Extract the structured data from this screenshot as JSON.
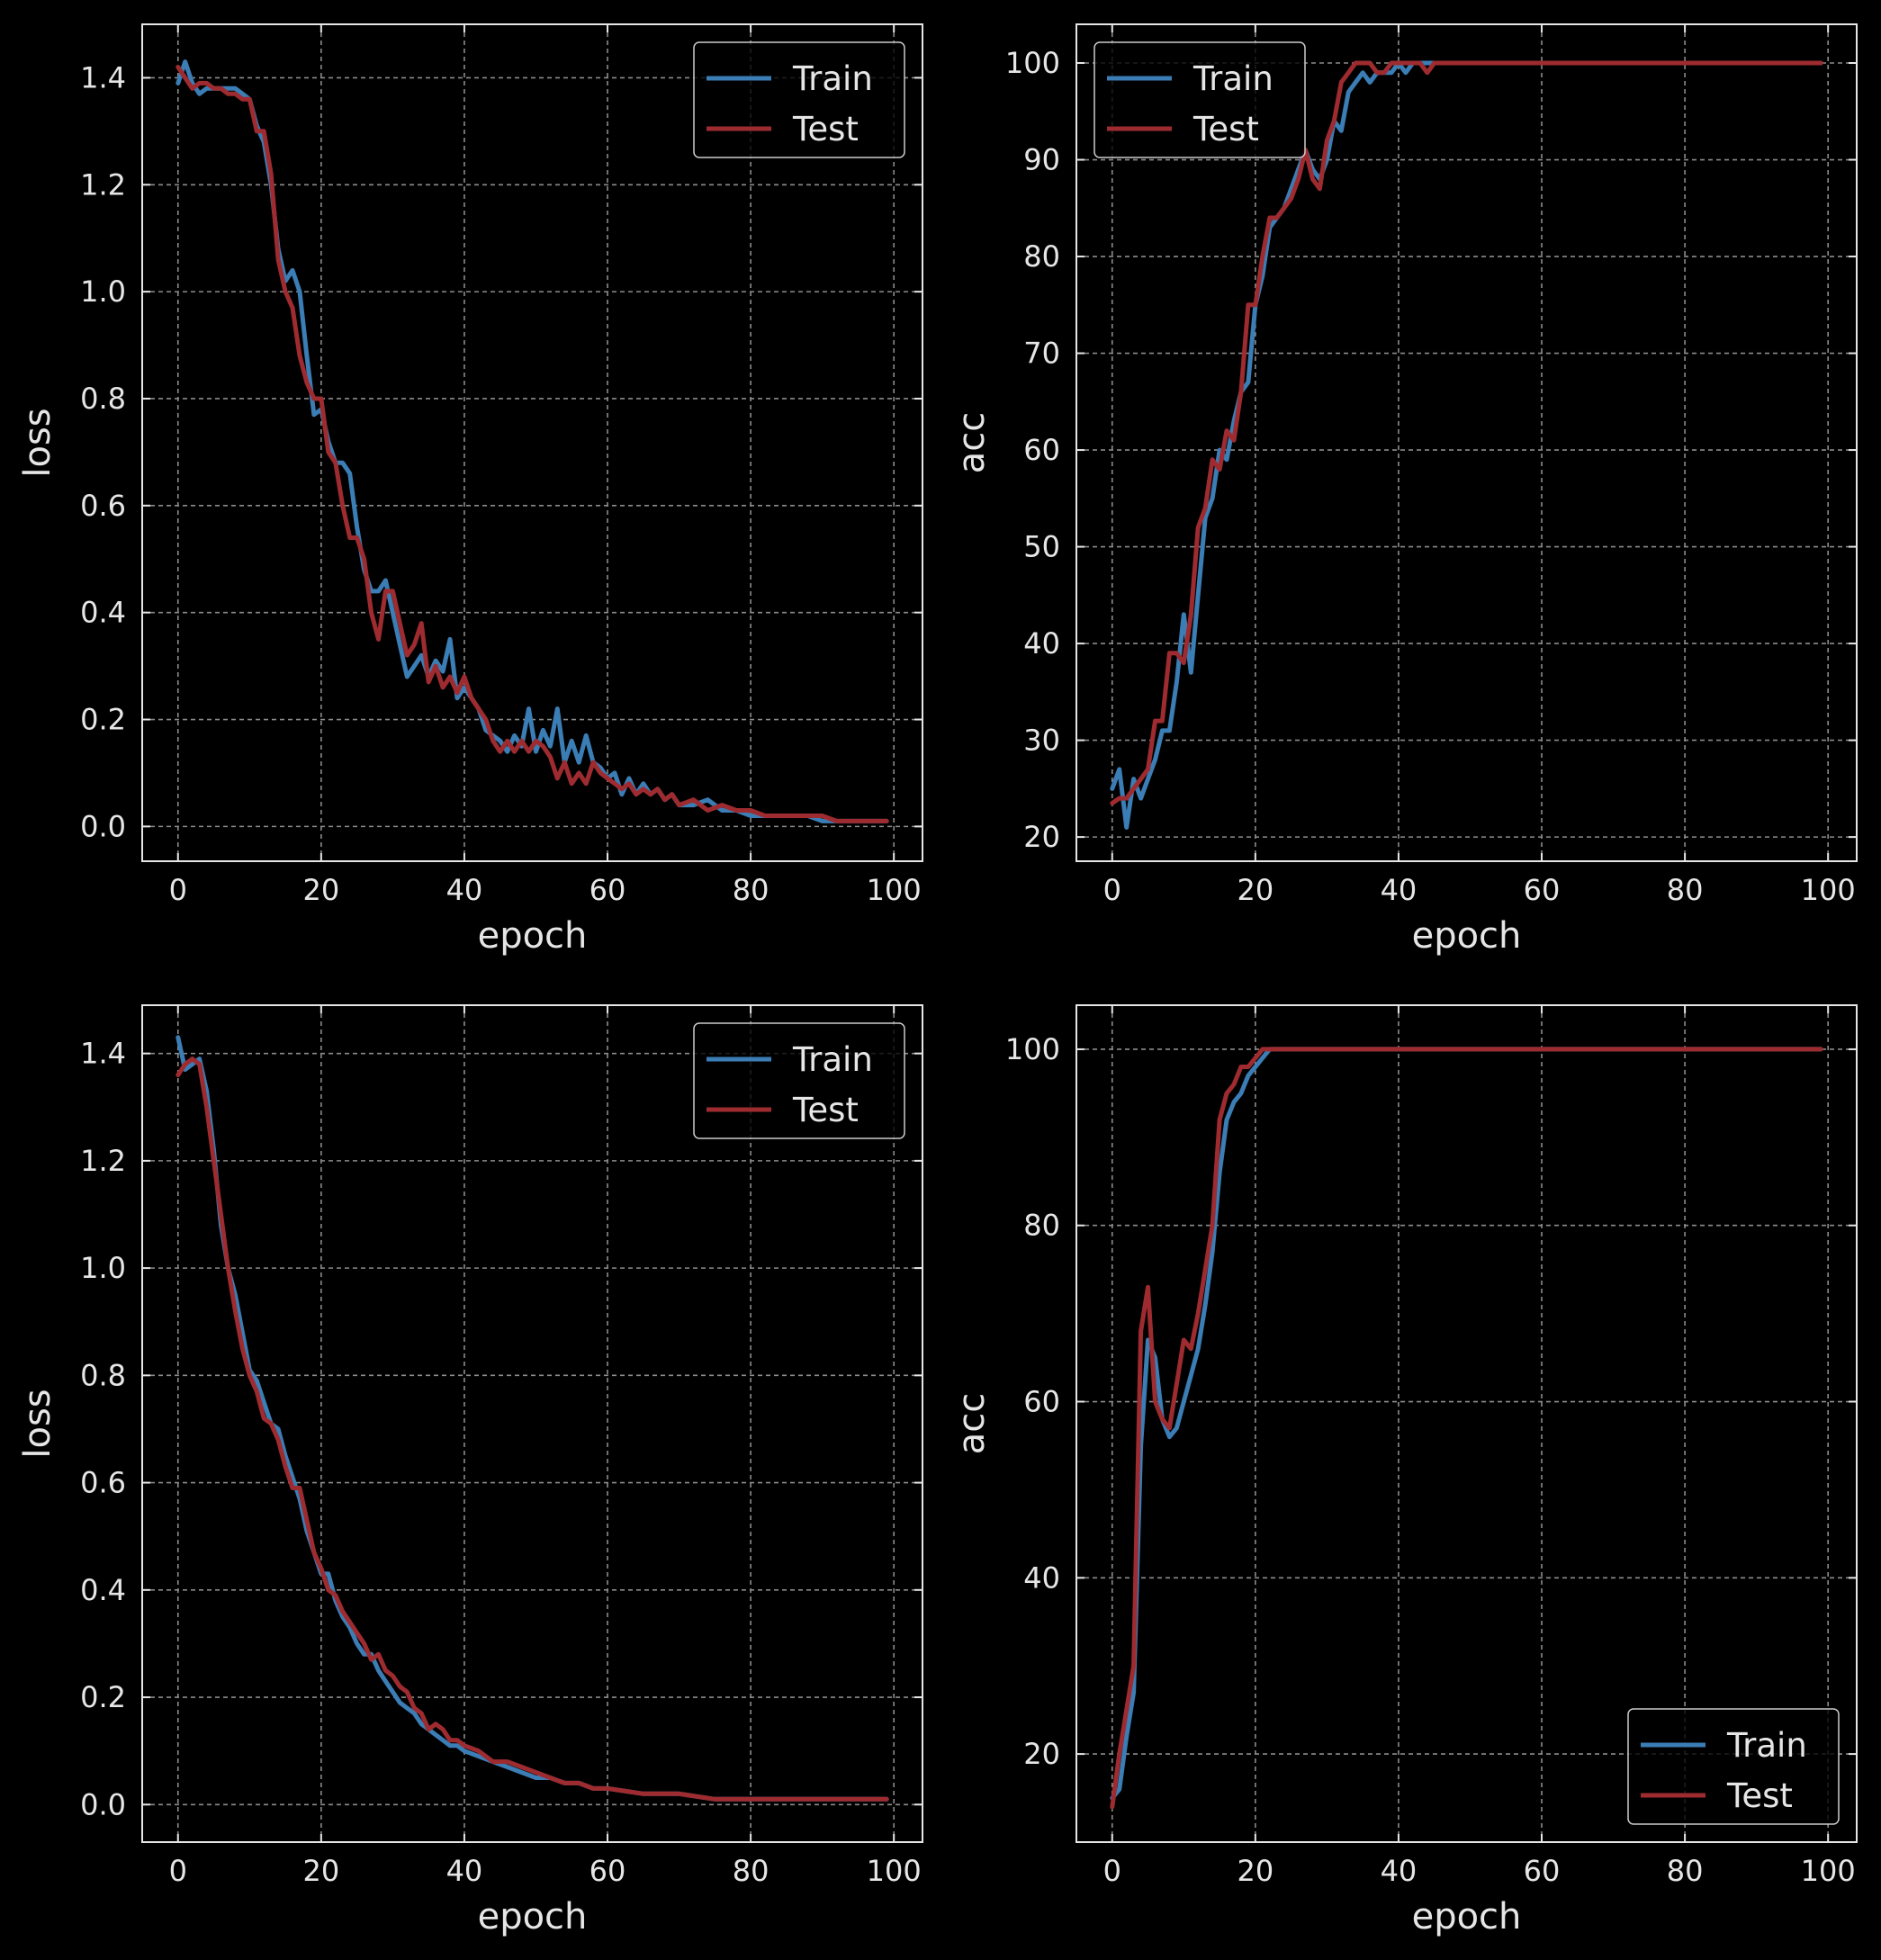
{
  "theme": {
    "background": "#000000",
    "axes_color": "#e6e6e6",
    "grid_color": "#8c8c8c",
    "train_color": "#3b7db5",
    "test_color": "#9e2b2f"
  },
  "chart_data": [
    {
      "type": "line",
      "panel": "top-left",
      "xlabel": "epoch",
      "ylabel": "loss",
      "xlim": [
        -5,
        104
      ],
      "ylim": [
        -0.065,
        1.5
      ],
      "xticks": [
        0,
        20,
        40,
        60,
        80,
        100
      ],
      "xtick_labels": [
        "0",
        "20",
        "40",
        "60",
        "80",
        "100"
      ],
      "yticks": [
        0.0,
        0.2,
        0.4,
        0.6,
        0.8,
        1.0,
        1.2,
        1.4
      ],
      "ytick_labels": [
        "0.0",
        "0.2",
        "0.4",
        "0.6",
        "0.8",
        "1.0",
        "1.2",
        "1.4"
      ],
      "grid": true,
      "legend_position": "top-right",
      "series": [
        {
          "name": "Train",
          "x": [
            0,
            1,
            2,
            3,
            4,
            5,
            6,
            7,
            8,
            9,
            10,
            11,
            12,
            13,
            14,
            15,
            16,
            17,
            18,
            19,
            20,
            21,
            22,
            23,
            24,
            25,
            26,
            27,
            28,
            29,
            30,
            31,
            32,
            33,
            34,
            35,
            36,
            37,
            38,
            39,
            40,
            41,
            42,
            43,
            44,
            45,
            46,
            47,
            48,
            49,
            50,
            51,
            52,
            53,
            54,
            55,
            56,
            57,
            58,
            59,
            60,
            61,
            62,
            63,
            64,
            65,
            66,
            67,
            68,
            69,
            70,
            72,
            74,
            76,
            78,
            80,
            82,
            84,
            86,
            88,
            90,
            92,
            94,
            96,
            98,
            99
          ],
          "y": [
            1.39,
            1.43,
            1.39,
            1.37,
            1.38,
            1.38,
            1.38,
            1.38,
            1.38,
            1.37,
            1.36,
            1.31,
            1.28,
            1.2,
            1.08,
            1.02,
            1.04,
            1.0,
            0.88,
            0.77,
            0.78,
            0.72,
            0.68,
            0.68,
            0.66,
            0.56,
            0.48,
            0.44,
            0.44,
            0.46,
            0.4,
            0.34,
            0.28,
            0.3,
            0.32,
            0.28,
            0.31,
            0.29,
            0.35,
            0.24,
            0.26,
            0.24,
            0.22,
            0.18,
            0.17,
            0.16,
            0.14,
            0.17,
            0.15,
            0.22,
            0.14,
            0.18,
            0.15,
            0.22,
            0.12,
            0.16,
            0.12,
            0.17,
            0.12,
            0.11,
            0.09,
            0.1,
            0.06,
            0.09,
            0.06,
            0.08,
            0.06,
            0.07,
            0.05,
            0.06,
            0.04,
            0.04,
            0.05,
            0.03,
            0.03,
            0.02,
            0.02,
            0.02,
            0.02,
            0.02,
            0.01,
            0.01,
            0.01,
            0.01,
            0.01,
            0.01
          ]
        },
        {
          "name": "Test",
          "x": [
            0,
            1,
            2,
            3,
            4,
            5,
            6,
            7,
            8,
            9,
            10,
            11,
            12,
            13,
            14,
            15,
            16,
            17,
            18,
            19,
            20,
            21,
            22,
            23,
            24,
            25,
            26,
            27,
            28,
            29,
            30,
            31,
            32,
            33,
            34,
            35,
            36,
            37,
            38,
            39,
            40,
            41,
            42,
            43,
            44,
            45,
            46,
            47,
            48,
            49,
            50,
            51,
            52,
            53,
            54,
            55,
            56,
            57,
            58,
            59,
            60,
            61,
            62,
            63,
            64,
            65,
            66,
            67,
            68,
            69,
            70,
            72,
            74,
            76,
            78,
            80,
            82,
            84,
            86,
            88,
            90,
            92,
            94,
            96,
            98,
            99
          ],
          "y": [
            1.42,
            1.4,
            1.38,
            1.39,
            1.39,
            1.38,
            1.38,
            1.37,
            1.37,
            1.36,
            1.36,
            1.3,
            1.3,
            1.22,
            1.06,
            1.0,
            0.97,
            0.88,
            0.83,
            0.8,
            0.8,
            0.7,
            0.68,
            0.6,
            0.54,
            0.54,
            0.5,
            0.4,
            0.35,
            0.44,
            0.44,
            0.38,
            0.32,
            0.34,
            0.38,
            0.27,
            0.3,
            0.26,
            0.28,
            0.25,
            0.28,
            0.24,
            0.22,
            0.2,
            0.16,
            0.14,
            0.16,
            0.14,
            0.16,
            0.14,
            0.16,
            0.15,
            0.13,
            0.09,
            0.12,
            0.08,
            0.1,
            0.08,
            0.12,
            0.1,
            0.09,
            0.08,
            0.07,
            0.08,
            0.06,
            0.07,
            0.06,
            0.07,
            0.05,
            0.06,
            0.04,
            0.05,
            0.03,
            0.04,
            0.03,
            0.03,
            0.02,
            0.02,
            0.02,
            0.02,
            0.02,
            0.01,
            0.01,
            0.01,
            0.01,
            0.01
          ]
        }
      ]
    },
    {
      "type": "line",
      "panel": "top-right",
      "xlabel": "epoch",
      "ylabel": "acc",
      "xlim": [
        -5,
        104
      ],
      "ylim": [
        17.5,
        104
      ],
      "xticks": [
        0,
        20,
        40,
        60,
        80,
        100
      ],
      "xtick_labels": [
        "0",
        "20",
        "40",
        "60",
        "80",
        "100"
      ],
      "yticks": [
        20,
        30,
        40,
        50,
        60,
        70,
        80,
        90,
        100
      ],
      "ytick_labels": [
        "20",
        "30",
        "40",
        "50",
        "60",
        "70",
        "80",
        "90",
        "100"
      ],
      "grid": true,
      "legend_position": "top-left",
      "series": [
        {
          "name": "Train",
          "x": [
            0,
            1,
            2,
            3,
            4,
            5,
            6,
            7,
            8,
            9,
            10,
            11,
            12,
            13,
            14,
            15,
            16,
            17,
            18,
            19,
            20,
            21,
            22,
            23,
            24,
            25,
            26,
            27,
            28,
            29,
            30,
            31,
            32,
            33,
            34,
            35,
            36,
            37,
            38,
            39,
            40,
            41,
            42,
            43,
            44,
            45,
            50,
            60,
            70,
            80,
            90,
            99
          ],
          "y": [
            25,
            27,
            21,
            26,
            24,
            26,
            28,
            31,
            31,
            36,
            43,
            37,
            45,
            53,
            55,
            60,
            59,
            63,
            66,
            67,
            75,
            78,
            83,
            84,
            85,
            87,
            89,
            91,
            89,
            88,
            90,
            94,
            93,
            97,
            98,
            99,
            98,
            99,
            99,
            99,
            100,
            99,
            100,
            100,
            100,
            100,
            100,
            100,
            100,
            100,
            100,
            100
          ]
        },
        {
          "name": "Test",
          "x": [
            0,
            1,
            2,
            3,
            4,
            5,
            6,
            7,
            8,
            9,
            10,
            11,
            12,
            13,
            14,
            15,
            16,
            17,
            18,
            19,
            20,
            21,
            22,
            23,
            24,
            25,
            26,
            27,
            28,
            29,
            30,
            31,
            32,
            33,
            34,
            35,
            36,
            37,
            38,
            39,
            40,
            41,
            42,
            43,
            44,
            45,
            50,
            60,
            70,
            80,
            90,
            99
          ],
          "y": [
            23.5,
            24,
            24,
            25,
            26,
            27,
            32,
            32,
            39,
            39,
            38,
            43,
            52,
            54,
            59,
            58,
            62,
            61,
            66,
            75,
            75,
            80,
            84,
            84,
            85,
            86,
            88,
            91,
            88,
            87,
            92,
            94,
            98,
            99,
            100,
            100,
            100,
            99,
            99,
            100,
            100,
            100,
            100,
            100,
            99,
            100,
            100,
            100,
            100,
            100,
            100,
            100
          ]
        }
      ]
    },
    {
      "type": "line",
      "panel": "bottom-left",
      "xlabel": "epoch",
      "ylabel": "loss",
      "xlim": [
        -5,
        104
      ],
      "ylim": [
        -0.07,
        1.49
      ],
      "xticks": [
        0,
        20,
        40,
        60,
        80,
        100
      ],
      "xtick_labels": [
        "0",
        "20",
        "40",
        "60",
        "80",
        "100"
      ],
      "yticks": [
        0.0,
        0.2,
        0.4,
        0.6,
        0.8,
        1.0,
        1.2,
        1.4
      ],
      "ytick_labels": [
        "0.0",
        "0.2",
        "0.4",
        "0.6",
        "0.8",
        "1.0",
        "1.2",
        "1.4"
      ],
      "grid": true,
      "legend_position": "top-right",
      "series": [
        {
          "name": "Train",
          "x": [
            0,
            1,
            2,
            3,
            4,
            5,
            6,
            7,
            8,
            9,
            10,
            11,
            12,
            13,
            14,
            15,
            16,
            17,
            18,
            19,
            20,
            21,
            22,
            23,
            24,
            25,
            26,
            27,
            28,
            29,
            30,
            31,
            32,
            33,
            34,
            35,
            36,
            37,
            38,
            39,
            40,
            42,
            44,
            46,
            48,
            50,
            52,
            54,
            56,
            58,
            60,
            65,
            70,
            75,
            80,
            85,
            90,
            95,
            99
          ],
          "y": [
            1.43,
            1.37,
            1.38,
            1.39,
            1.33,
            1.22,
            1.08,
            1.0,
            0.95,
            0.88,
            0.81,
            0.79,
            0.75,
            0.71,
            0.7,
            0.65,
            0.61,
            0.57,
            0.51,
            0.47,
            0.43,
            0.43,
            0.38,
            0.35,
            0.33,
            0.3,
            0.28,
            0.28,
            0.25,
            0.23,
            0.21,
            0.19,
            0.18,
            0.17,
            0.15,
            0.14,
            0.13,
            0.12,
            0.11,
            0.11,
            0.1,
            0.09,
            0.08,
            0.07,
            0.06,
            0.05,
            0.05,
            0.04,
            0.04,
            0.03,
            0.03,
            0.02,
            0.02,
            0.01,
            0.01,
            0.01,
            0.01,
            0.01,
            0.01
          ]
        },
        {
          "name": "Test",
          "x": [
            0,
            1,
            2,
            3,
            4,
            5,
            6,
            7,
            8,
            9,
            10,
            11,
            12,
            13,
            14,
            15,
            16,
            17,
            18,
            19,
            20,
            21,
            22,
            23,
            24,
            25,
            26,
            27,
            28,
            29,
            30,
            31,
            32,
            33,
            34,
            35,
            36,
            37,
            38,
            39,
            40,
            42,
            44,
            46,
            48,
            50,
            52,
            54,
            56,
            58,
            60,
            65,
            70,
            75,
            80,
            85,
            90,
            95,
            99
          ],
          "y": [
            1.36,
            1.38,
            1.39,
            1.38,
            1.3,
            1.2,
            1.1,
            1.0,
            0.92,
            0.85,
            0.8,
            0.77,
            0.72,
            0.71,
            0.68,
            0.63,
            0.59,
            0.59,
            0.53,
            0.47,
            0.44,
            0.4,
            0.39,
            0.36,
            0.34,
            0.32,
            0.3,
            0.27,
            0.28,
            0.25,
            0.24,
            0.22,
            0.21,
            0.18,
            0.17,
            0.14,
            0.15,
            0.14,
            0.12,
            0.12,
            0.11,
            0.1,
            0.08,
            0.08,
            0.07,
            0.06,
            0.05,
            0.04,
            0.04,
            0.03,
            0.03,
            0.02,
            0.02,
            0.01,
            0.01,
            0.01,
            0.01,
            0.01,
            0.01
          ]
        }
      ]
    },
    {
      "type": "line",
      "panel": "bottom-right",
      "xlabel": "epoch",
      "ylabel": "acc",
      "xlim": [
        -5,
        104
      ],
      "ylim": [
        10,
        105
      ],
      "xticks": [
        0,
        20,
        40,
        60,
        80,
        100
      ],
      "xtick_labels": [
        "0",
        "20",
        "40",
        "60",
        "80",
        "100"
      ],
      "yticks": [
        20,
        40,
        60,
        80,
        100
      ],
      "ytick_labels": [
        "20",
        "40",
        "60",
        "80",
        "100"
      ],
      "grid": true,
      "legend_position": "bottom-right",
      "series": [
        {
          "name": "Train",
          "x": [
            0,
            1,
            2,
            3,
            4,
            5,
            6,
            7,
            8,
            9,
            10,
            11,
            12,
            13,
            14,
            15,
            16,
            17,
            18,
            19,
            20,
            21,
            22,
            23,
            24,
            25,
            30,
            40,
            50,
            60,
            70,
            80,
            90,
            99
          ],
          "y": [
            15,
            16,
            22,
            27,
            55,
            67,
            65,
            58,
            56,
            57,
            60,
            63,
            66,
            71,
            77,
            86,
            92,
            94,
            95,
            97,
            98,
            99,
            100,
            100,
            100,
            100,
            100,
            100,
            100,
            100,
            100,
            100,
            100,
            100
          ]
        },
        {
          "name": "Test",
          "x": [
            0,
            1,
            2,
            3,
            4,
            5,
            6,
            7,
            8,
            9,
            10,
            11,
            12,
            13,
            14,
            15,
            16,
            17,
            18,
            19,
            20,
            21,
            22,
            23,
            24,
            25,
            30,
            40,
            50,
            60,
            70,
            80,
            90,
            99
          ],
          "y": [
            14,
            20,
            25,
            30,
            68,
            73,
            60,
            58,
            57,
            62,
            67,
            66,
            70,
            75,
            80,
            92,
            95,
            96,
            98,
            98,
            99,
            100,
            100,
            100,
            100,
            100,
            100,
            100,
            100,
            100,
            100,
            100,
            100,
            100
          ]
        }
      ]
    }
  ]
}
